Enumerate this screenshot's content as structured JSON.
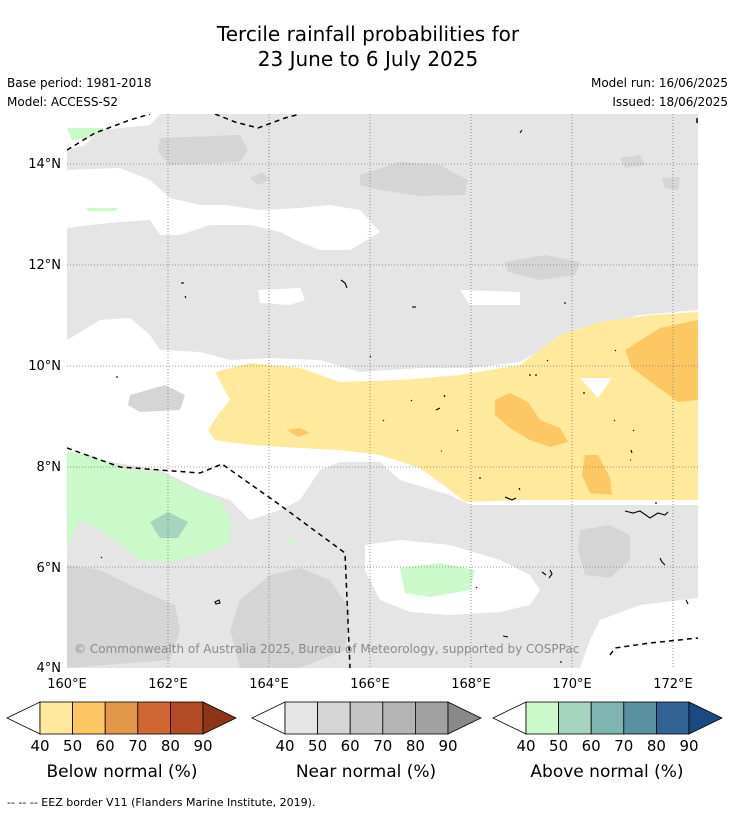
{
  "title_line1": "Tercile rainfall probabilities for",
  "title_line2": "23 June to 6 July 2025",
  "base_period": "Base period: 1981-2018",
  "model": "Model: ACCESS-S2",
  "model_run": "Model run: 16/06/2025",
  "issued": "Issued: 18/06/2025",
  "copyright": "© Commonwealth of Australia 2025, Bureau of Meteorology, supported by COSPPac",
  "lat_ticks": [
    "14°N",
    "12°N",
    "10°N",
    "8°N",
    "6°N",
    "4°N"
  ],
  "lon_ticks": [
    "160°E",
    "162°E",
    "164°E",
    "166°E",
    "168°E",
    "170°E",
    "172°E"
  ],
  "legends": [
    {
      "name": "below",
      "label": "Below normal (%)",
      "ticks": [
        "40",
        "50",
        "60",
        "70",
        "80",
        "90"
      ],
      "colors": [
        "#ffffff",
        "#fee99d",
        "#fdc863",
        "#e39848",
        "#d06733",
        "#b24a25",
        "#8c3519"
      ]
    },
    {
      "name": "near",
      "label": "Near normal (%)",
      "ticks": [
        "40",
        "50",
        "60",
        "70",
        "80",
        "90"
      ],
      "colors": [
        "#ffffff",
        "#e5e5e5",
        "#d5d5d5",
        "#c4c4c4",
        "#b4b4b4",
        "#a1a1a1",
        "#888888"
      ]
    },
    {
      "name": "above",
      "label": "Above normal (%)",
      "ticks": [
        "40",
        "50",
        "60",
        "70",
        "80",
        "90"
      ],
      "colors": [
        "#ffffff",
        "#ccf9c9",
        "#a5d5bf",
        "#7fb5b0",
        "#5a91a0",
        "#326393",
        "#1b4a83"
      ]
    }
  ],
  "footnote": "--  --  -- EEZ border V11 (Flanders Marine Institute, 2019)."
}
